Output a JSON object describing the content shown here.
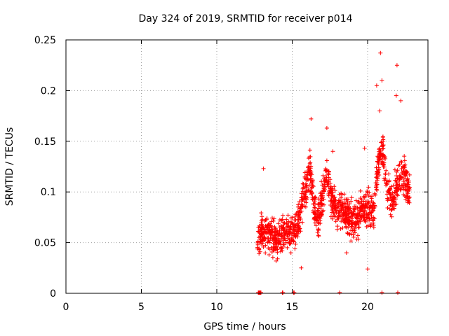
{
  "chart_data": {
    "type": "scatter",
    "title": "Day 324 of 2019, SRMTID for receiver p014",
    "xlabel": "GPS time / hours",
    "ylabel": "SRMTID / TECUs",
    "xlim": [
      0,
      24
    ],
    "ylim": [
      0,
      0.25
    ],
    "xticks": [
      0,
      5,
      10,
      15,
      20
    ],
    "yticks": [
      0,
      0.05,
      0.1,
      0.15,
      0.2,
      0.25
    ],
    "xtick_labels": [
      "0",
      "5",
      "10",
      "15",
      "20"
    ],
    "ytick_labels": [
      "0",
      "0.05",
      "0.1",
      "0.15",
      "0.2",
      "0.25"
    ],
    "grid": true,
    "legend": "none",
    "marker": "+",
    "color": "#ff0000",
    "series": [
      {
        "name": "p014 SRMTID",
        "profile": [
          [
            12.7,
            0.052
          ],
          [
            13.0,
            0.06
          ],
          [
            13.3,
            0.058
          ],
          [
            13.6,
            0.055
          ],
          [
            14.0,
            0.052
          ],
          [
            14.3,
            0.056
          ],
          [
            14.6,
            0.062
          ],
          [
            15.0,
            0.06
          ],
          [
            15.4,
            0.068
          ],
          [
            15.8,
            0.098
          ],
          [
            16.2,
            0.12
          ],
          [
            16.5,
            0.08
          ],
          [
            16.8,
            0.072
          ],
          [
            17.0,
            0.095
          ],
          [
            17.3,
            0.12
          ],
          [
            17.6,
            0.092
          ],
          [
            18.0,
            0.08
          ],
          [
            18.4,
            0.085
          ],
          [
            18.8,
            0.075
          ],
          [
            19.2,
            0.072
          ],
          [
            19.6,
            0.08
          ],
          [
            20.0,
            0.085
          ],
          [
            20.4,
            0.08
          ],
          [
            20.7,
            0.13
          ],
          [
            21.0,
            0.145
          ],
          [
            21.3,
            0.1
          ],
          [
            21.6,
            0.09
          ],
          [
            22.0,
            0.11
          ],
          [
            22.3,
            0.12
          ],
          [
            22.8,
            0.1
          ]
        ],
        "spread": 0.026,
        "count": 1300,
        "outliers": [
          [
            20.85,
            0.237
          ],
          [
            21.95,
            0.225
          ],
          [
            20.95,
            0.21
          ],
          [
            20.6,
            0.205
          ],
          [
            21.9,
            0.195
          ],
          [
            22.2,
            0.19
          ],
          [
            20.8,
            0.18
          ],
          [
            16.25,
            0.172
          ],
          [
            17.3,
            0.163
          ],
          [
            13.1,
            0.123
          ],
          [
            17.7,
            0.14
          ],
          [
            19.8,
            0.143
          ],
          [
            15.6,
            0.025
          ],
          [
            20.0,
            0.024
          ],
          [
            18.6,
            0.04
          ]
        ],
        "zero_points": [
          12.75,
          12.78,
          12.8,
          12.83,
          12.86,
          12.9,
          12.93,
          14.35,
          14.38,
          15.1,
          15.13,
          18.15,
          20.95,
          22.0
        ]
      }
    ]
  }
}
